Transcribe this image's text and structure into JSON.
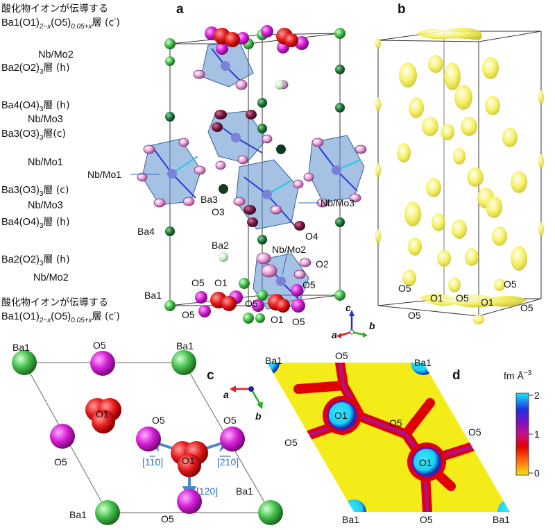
{
  "panels": {
    "a": "a",
    "b": "b",
    "c": "c",
    "d": "d"
  },
  "left_labels": {
    "top1": "酸化物イオンが伝導する",
    "top2": "Ba1(O1)",
    "top2_sub1": "2−x",
    "top2_mid": "(O5)",
    "top2_sub2": "0.05+x",
    "top2_end": "層 (c′)",
    "nbmo2_top": "Nb/Mo2",
    "ba2_top": "Ba2(O2)",
    "ba2_top_sub": "3",
    "ba2_top_end": "層 (h)",
    "ba4_top": "Ba4(O4)",
    "ba4_top_sub": "3",
    "ba4_top_end": "層 (h)",
    "nbmo3_top": "Nb/Mo3",
    "ba3_top": "Ba3(O3)",
    "ba3_top_sub": "3",
    "ba3_top_end": "層(c)",
    "nbmo1": "Nb/Mo1",
    "ba3_bot": "Ba3(O3)",
    "ba3_bot_sub": "3",
    "ba3_bot_end": "層 (c)",
    "nbmo3_bot": "Nb/Mo3",
    "ba4_bot": "Ba4(O4)",
    "ba4_bot_sub": "3",
    "ba4_bot_end": "層 (h)",
    "ba2_bot": "Ba2(O2)",
    "ba2_bot_sub": "3",
    "ba2_bot_end": "層 (h)",
    "nbmo2_bot": "Nb/Mo2",
    "bot1": "酸化物イオンが伝導する",
    "bot2": "Ba1(O1)",
    "bot2_sub1": "2−x",
    "bot2_mid": "(O5)",
    "bot2_sub2": "0.05+x",
    "bot2_end": "層 (c′)"
  },
  "panel_a_labels": {
    "nbmo1": "Nb/Mo1",
    "ba3": "Ba3",
    "o3": "O3",
    "nbmo3": "Nb/Mo3",
    "o4": "O4",
    "ba4": "Ba4",
    "ba2": "Ba2",
    "nbmo2": "Nb/Mo2",
    "o2": "O2",
    "o5a": "O5",
    "o1a": "O1",
    "ba1": "Ba1",
    "o5b": "O5",
    "o5c": "O5",
    "o5d": "O5",
    "o1b": "O1",
    "o5e": "O5"
  },
  "axes": {
    "a": "a",
    "b": "b",
    "c": "c"
  },
  "panel_b_labels": {
    "o5a": "O5",
    "o1a": "O1",
    "o5b": "O5",
    "o1b": "O1",
    "o5c": "O5",
    "o5d": "O5",
    "o5e": "O5"
  },
  "panel_c_labels": {
    "ba1_tl": "Ba1",
    "o5_t": "O5",
    "ba1_tr": "Ba1",
    "o1_left": "O1",
    "o5_l": "O5",
    "o5_cl": "O5",
    "o5_cr": "O5",
    "o1_center": "O1",
    "dir1": "[1",
    "dir1_bar": "1",
    "dir1_end": "0]",
    "dir2_open": "[",
    "dir2_bar": "21",
    "dir2_end": "0]",
    "dir3": "[120]",
    "ba1_bl": "Ba1",
    "o5_b": "O5",
    "ba1_br": "Ba1"
  },
  "panel_d_labels": {
    "ba1_tl": "Ba1",
    "o5_t": "O5",
    "ba1_tr": "Ba1",
    "o1_a": "O1",
    "o5_m": "O5",
    "o5_l": "O5",
    "o5_r": "O5",
    "o1_b": "O1",
    "ba1_bl": "Ba1",
    "o5_b": "O5",
    "ba1_br": "Ba1"
  },
  "colorbar": {
    "unit": "fm Å",
    "unit_sup": "−3",
    "ticks": [
      "2",
      "1",
      "0"
    ]
  },
  "colors": {
    "ba": "#3dc24a",
    "o1": "#e01818",
    "o5": "#d018d0",
    "octahedron": "#5b8fd0",
    "density": "#f2ee3a"
  }
}
